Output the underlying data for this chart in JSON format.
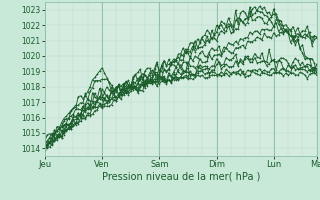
{
  "xlabel": "Pression niveau de la mer( hPa )",
  "bg_color": "#c8e8d8",
  "plot_bg_color": "#d4ece0",
  "grid_minor_color": "#b8d8c8",
  "grid_major_color": "#90c0a8",
  "line_color": "#1a5c2a",
  "sep_line_color": "#88b898",
  "ylim": [
    1013.5,
    1023.5
  ],
  "yticks": [
    1014,
    1015,
    1016,
    1017,
    1018,
    1019,
    1020,
    1021,
    1022,
    1023
  ],
  "day_labels": [
    "Jeu",
    "Ven",
    "Sam",
    "Dim",
    "Lun",
    "Ma"
  ],
  "day_positions": [
    0,
    24,
    48,
    72,
    96,
    114
  ],
  "total_hours": 114,
  "tick_fontsize": 5.5,
  "xlabel_fontsize": 7
}
